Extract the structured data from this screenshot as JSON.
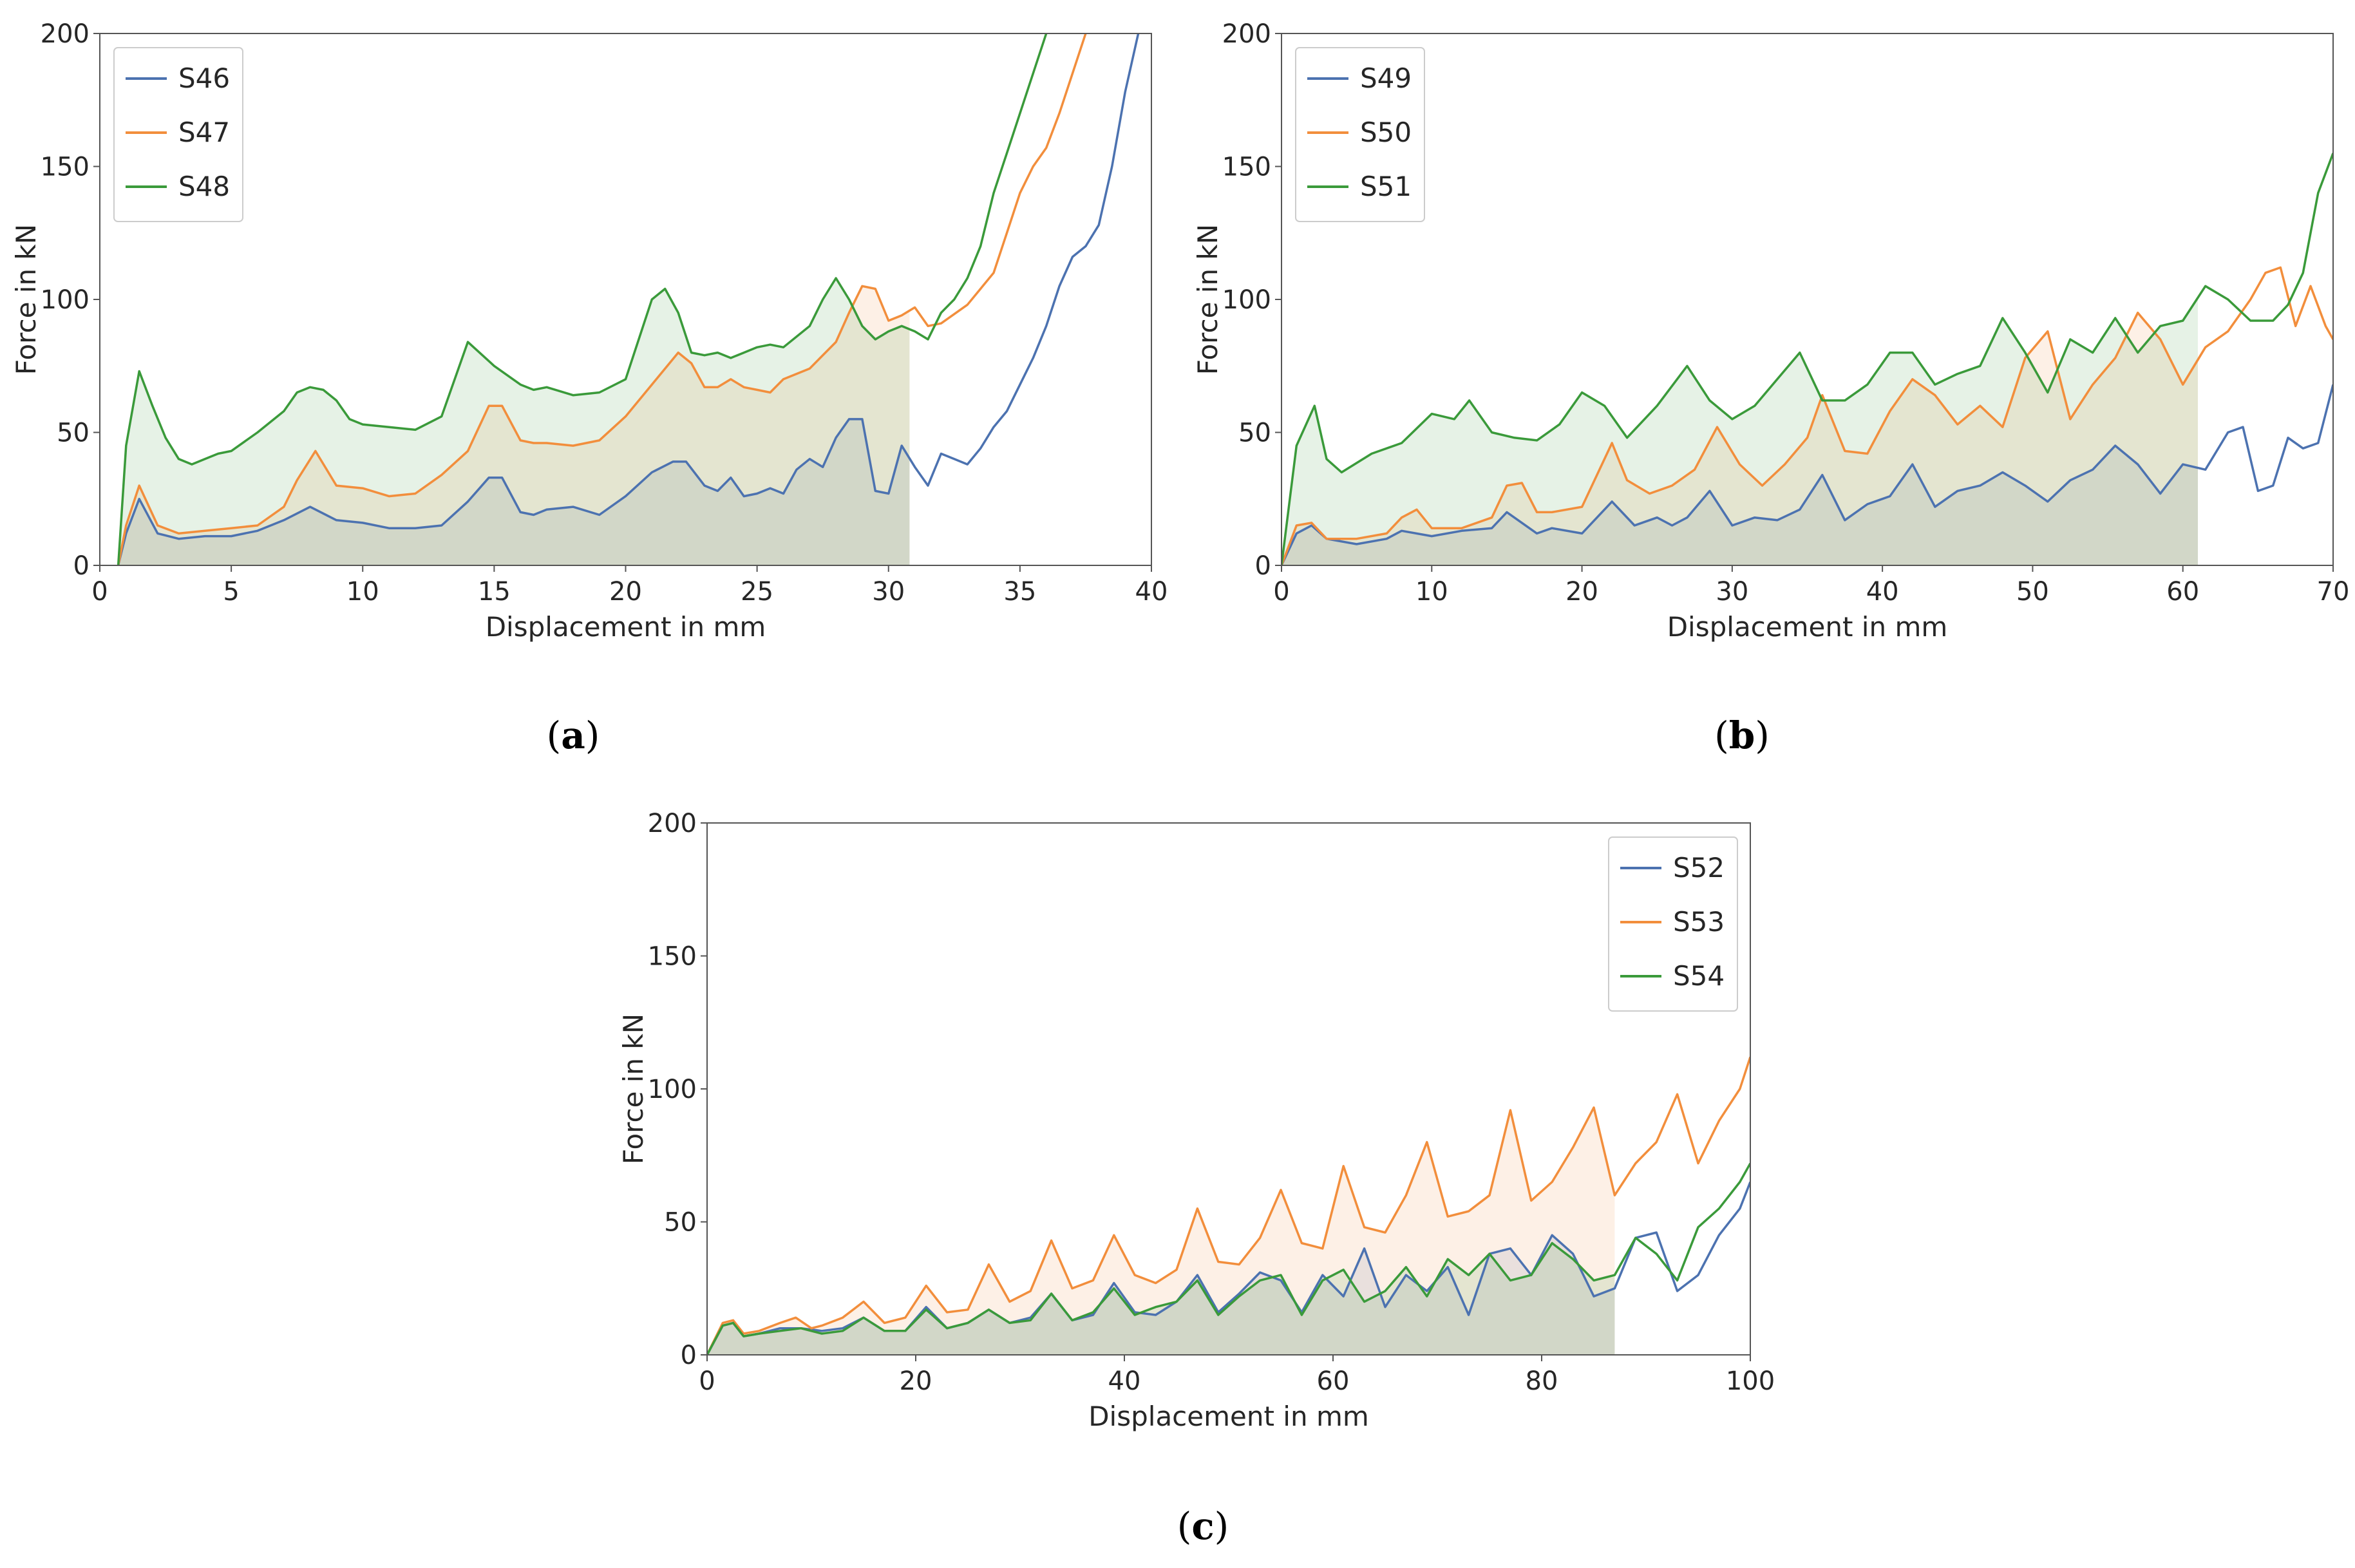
{
  "colors": {
    "blue": "#4c72b0",
    "orange": "#f28e3c",
    "green": "#3a9a3a"
  },
  "chart_data": [
    {
      "type": "line",
      "caption": "a",
      "xlabel": "Displacement in mm",
      "ylabel": "Force in kN",
      "xlim": [
        0,
        40
      ],
      "ylim": [
        0,
        200
      ],
      "xticks": [
        "0",
        "5",
        "10",
        "15",
        "20",
        "25",
        "30",
        "35",
        "40"
      ],
      "yticks": [
        "0",
        "50",
        "100",
        "150",
        "200"
      ],
      "legend_position": "upper-left",
      "shade_until": 30.8,
      "series": [
        {
          "name": "S46",
          "color": "#4c72b0",
          "x": [
            0.7,
            1.0,
            1.5,
            2.2,
            3.0,
            4.0,
            5.0,
            6.0,
            7.0,
            8.0,
            9.0,
            10.0,
            11.0,
            12.0,
            13.0,
            14.0,
            14.8,
            15.3,
            16.0,
            16.5,
            17.0,
            18.0,
            19.0,
            20.0,
            21.0,
            21.8,
            22.3,
            23.0,
            23.5,
            24.0,
            24.5,
            25.0,
            25.5,
            26.0,
            26.5,
            27.0,
            27.5,
            28.0,
            28.5,
            29.0,
            29.5,
            30.0,
            30.5,
            31.0,
            31.5,
            32.0,
            32.5,
            33.0,
            33.5,
            34.0,
            34.5,
            35.0,
            35.5,
            36.0,
            36.5,
            37.0,
            37.5,
            38.0,
            38.5,
            39.0,
            39.5
          ],
          "y": [
            0,
            12,
            25,
            12,
            10,
            11,
            11,
            13,
            17,
            22,
            17,
            16,
            14,
            14,
            15,
            24,
            33,
            33,
            20,
            19,
            21,
            22,
            19,
            26,
            35,
            39,
            39,
            30,
            28,
            33,
            26,
            27,
            29,
            27,
            36,
            40,
            37,
            48,
            55,
            55,
            28,
            27,
            45,
            37,
            30,
            42,
            40,
            38,
            44,
            52,
            58,
            68,
            78,
            90,
            105,
            116,
            120,
            128,
            150,
            178,
            200
          ]
        },
        {
          "name": "S47",
          "color": "#f28e3c",
          "x": [
            0.7,
            1.0,
            1.5,
            2.2,
            3.0,
            4.0,
            5.0,
            6.0,
            7.0,
            7.5,
            8.2,
            9.0,
            10.0,
            11.0,
            12.0,
            13.0,
            14.0,
            14.8,
            15.3,
            16.0,
            16.5,
            17.0,
            18.0,
            19.0,
            20.0,
            21.0,
            22.0,
            22.5,
            23.0,
            23.5,
            24.0,
            24.5,
            25.0,
            25.5,
            26.0,
            27.0,
            28.0,
            28.5,
            29.0,
            29.5,
            30.0,
            30.5,
            31.0,
            31.5,
            32.0,
            33.0,
            34.0,
            34.5,
            35.0,
            35.5,
            36.0,
            36.5,
            37.0,
            37.5
          ],
          "y": [
            0,
            15,
            30,
            15,
            12,
            13,
            14,
            15,
            22,
            32,
            43,
            30,
            29,
            26,
            27,
            34,
            43,
            60,
            60,
            47,
            46,
            46,
            45,
            47,
            56,
            68,
            80,
            76,
            67,
            67,
            70,
            67,
            66,
            65,
            70,
            74,
            84,
            95,
            105,
            104,
            92,
            94,
            97,
            90,
            91,
            98,
            110,
            125,
            140,
            150,
            157,
            170,
            185,
            200
          ]
        },
        {
          "name": "S48",
          "color": "#3a9a3a",
          "x": [
            0.7,
            1.0,
            1.5,
            2.0,
            2.5,
            3.0,
            3.5,
            4.0,
            4.5,
            5.0,
            6.0,
            7.0,
            7.5,
            8.0,
            8.5,
            9.0,
            9.5,
            10.0,
            11.0,
            12.0,
            13.0,
            14.0,
            15.0,
            16.0,
            16.5,
            17.0,
            18.0,
            19.0,
            20.0,
            21.0,
            21.5,
            22.0,
            22.5,
            23.0,
            23.5,
            24.0,
            24.5,
            25.0,
            25.5,
            26.0,
            27.0,
            27.5,
            28.0,
            28.5,
            29.0,
            29.5,
            30.0,
            30.5,
            31.0,
            31.5,
            32.0,
            32.5,
            33.0,
            33.5,
            34.0,
            34.5,
            35.0,
            35.5,
            36.0
          ],
          "y": [
            0,
            45,
            73,
            60,
            48,
            40,
            38,
            40,
            42,
            43,
            50,
            58,
            65,
            67,
            66,
            62,
            55,
            53,
            52,
            51,
            56,
            84,
            75,
            68,
            66,
            67,
            64,
            65,
            70,
            100,
            104,
            95,
            80,
            79,
            80,
            78,
            80,
            82,
            83,
            82,
            90,
            100,
            108,
            100,
            90,
            85,
            88,
            90,
            88,
            85,
            95,
            100,
            108,
            120,
            140,
            155,
            170,
            185,
            200
          ]
        }
      ]
    },
    {
      "type": "line",
      "caption": "b",
      "xlabel": "Displacement in mm",
      "ylabel": "Force in kN",
      "xlim": [
        0,
        70
      ],
      "ylim": [
        0,
        200
      ],
      "xticks": [
        "0",
        "10",
        "20",
        "30",
        "40",
        "50",
        "60",
        "70"
      ],
      "yticks": [
        "0",
        "50",
        "100",
        "150",
        "200"
      ],
      "legend_position": "upper-left",
      "shade_until": 61,
      "series": [
        {
          "name": "S49",
          "color": "#4c72b0",
          "x": [
            0,
            1.0,
            2.0,
            3.0,
            5.0,
            7.0,
            8.0,
            10.0,
            12.0,
            14.0,
            15.0,
            17.0,
            18.0,
            20.0,
            22.0,
            23.5,
            25.0,
            26.0,
            27.0,
            28.5,
            30.0,
            31.5,
            33.0,
            34.5,
            36.0,
            37.5,
            39.0,
            40.5,
            42.0,
            43.5,
            45.0,
            46.5,
            48.0,
            49.5,
            51.0,
            52.5,
            54.0,
            55.5,
            57.0,
            58.5,
            60.0,
            61.5,
            63.0,
            64.0,
            65.0,
            66.0,
            67.0,
            68.0,
            69.0,
            70.0
          ],
          "y": [
            0,
            12,
            15,
            10,
            8,
            10,
            13,
            11,
            13,
            14,
            20,
            12,
            14,
            12,
            24,
            15,
            18,
            15,
            18,
            28,
            15,
            18,
            17,
            21,
            34,
            17,
            23,
            26,
            38,
            22,
            28,
            30,
            35,
            30,
            24,
            32,
            36,
            45,
            38,
            27,
            38,
            36,
            50,
            52,
            28,
            30,
            48,
            44,
            46,
            68
          ]
        },
        {
          "name": "S50",
          "color": "#f28e3c",
          "x": [
            0,
            1.0,
            2.0,
            3.0,
            5.0,
            7.0,
            8.0,
            9.0,
            10.0,
            12.0,
            14.0,
            15.0,
            16.0,
            17.0,
            18.0,
            20.0,
            22.0,
            23.0,
            24.5,
            26.0,
            27.5,
            29.0,
            30.5,
            32.0,
            33.5,
            35.0,
            36.0,
            37.5,
            39.0,
            40.5,
            42.0,
            43.5,
            45.0,
            46.5,
            48.0,
            49.5,
            51.0,
            52.5,
            54.0,
            55.5,
            57.0,
            58.5,
            60.0,
            61.5,
            63.0,
            64.5,
            65.5,
            66.5,
            67.5,
            68.5,
            69.5,
            70.0
          ],
          "y": [
            0,
            15,
            16,
            10,
            10,
            12,
            18,
            21,
            14,
            14,
            18,
            30,
            31,
            20,
            20,
            22,
            46,
            32,
            27,
            30,
            36,
            52,
            38,
            30,
            38,
            48,
            64,
            43,
            42,
            58,
            70,
            64,
            53,
            60,
            52,
            78,
            88,
            55,
            68,
            78,
            95,
            85,
            68,
            82,
            88,
            100,
            110,
            112,
            90,
            105,
            90,
            85
          ]
        },
        {
          "name": "S51",
          "color": "#3a9a3a",
          "x": [
            0,
            1.0,
            2.2,
            3.0,
            4.0,
            6.0,
            8.0,
            10.0,
            11.5,
            12.5,
            14.0,
            15.5,
            17.0,
            18.5,
            20.0,
            21.5,
            23.0,
            25.0,
            27.0,
            28.5,
            30.0,
            31.5,
            33.0,
            34.5,
            36.0,
            37.5,
            39.0,
            40.5,
            42.0,
            43.5,
            45.0,
            46.5,
            48.0,
            49.5,
            51.0,
            52.5,
            54.0,
            55.5,
            57.0,
            58.5,
            60.0,
            61.5,
            63.0,
            64.5,
            66.0,
            67.0,
            68.0,
            69.0,
            70.0
          ],
          "y": [
            0,
            45,
            60,
            40,
            35,
            42,
            46,
            57,
            55,
            62,
            50,
            48,
            47,
            53,
            65,
            60,
            48,
            60,
            75,
            62,
            55,
            60,
            70,
            80,
            62,
            62,
            68,
            80,
            80,
            68,
            72,
            75,
            93,
            80,
            65,
            85,
            80,
            93,
            80,
            90,
            92,
            105,
            100,
            92,
            92,
            98,
            110,
            140,
            155
          ]
        }
      ]
    },
    {
      "type": "line",
      "caption": "c",
      "xlabel": "Displacement in mm",
      "ylabel": "Force in kN",
      "xlim": [
        0,
        100
      ],
      "ylim": [
        0,
        200
      ],
      "xticks": [
        "0",
        "20",
        "40",
        "60",
        "80",
        "100"
      ],
      "yticks": [
        "0",
        "50",
        "100",
        "150",
        "200"
      ],
      "legend_position": "upper-right",
      "shade_until": 87,
      "series": [
        {
          "name": "S52",
          "color": "#4c72b0",
          "x": [
            0,
            1.5,
            2.5,
            3.5,
            5,
            7,
            9,
            11,
            13,
            15,
            17,
            19,
            21,
            23,
            25,
            27,
            29,
            31,
            33,
            35,
            37,
            39,
            41,
            43,
            45,
            47,
            49,
            51,
            53,
            55,
            57,
            59,
            61,
            63,
            65,
            67,
            69,
            71,
            73,
            75,
            77,
            79,
            81,
            83,
            85,
            87,
            89,
            91,
            93,
            95,
            97,
            99,
            100
          ],
          "y": [
            0,
            11,
            12,
            7,
            8,
            10,
            10,
            9,
            10,
            14,
            9,
            9,
            18,
            10,
            12,
            17,
            12,
            14,
            23,
            13,
            15,
            27,
            16,
            15,
            20,
            30,
            16,
            23,
            31,
            28,
            16,
            30,
            22,
            40,
            18,
            30,
            24,
            33,
            15,
            38,
            40,
            30,
            45,
            38,
            22,
            25,
            44,
            46,
            24,
            30,
            45,
            55,
            65
          ]
        },
        {
          "name": "S53",
          "color": "#f28e3c",
          "x": [
            0,
            1.5,
            2.5,
            3.5,
            5,
            7,
            8.5,
            10,
            11,
            13,
            15,
            17,
            19,
            21,
            23,
            25,
            27,
            29,
            31,
            33,
            35,
            37,
            39,
            41,
            43,
            45,
            47,
            49,
            51,
            53,
            55,
            57,
            59,
            61,
            63,
            65,
            67,
            69,
            71,
            73,
            75,
            77,
            79,
            81,
            83,
            85,
            87,
            89,
            91,
            93,
            95,
            97,
            99,
            100
          ],
          "y": [
            0,
            12,
            13,
            8,
            9,
            12,
            14,
            10,
            11,
            14,
            20,
            12,
            14,
            26,
            16,
            17,
            34,
            20,
            24,
            43,
            25,
            28,
            45,
            30,
            27,
            32,
            55,
            35,
            34,
            44,
            62,
            42,
            40,
            71,
            48,
            46,
            60,
            80,
            52,
            54,
            60,
            92,
            58,
            65,
            78,
            93,
            60,
            72,
            80,
            98,
            72,
            88,
            100,
            112
          ]
        },
        {
          "name": "S54",
          "color": "#3a9a3a",
          "x": [
            0,
            1.5,
            2.5,
            3.5,
            5,
            7,
            9,
            11,
            13,
            15,
            17,
            19,
            21,
            23,
            25,
            27,
            29,
            31,
            33,
            35,
            37,
            39,
            41,
            43,
            45,
            47,
            49,
            51,
            53,
            55,
            57,
            59,
            61,
            63,
            65,
            67,
            69,
            71,
            73,
            75,
            77,
            79,
            81,
            83,
            85,
            87,
            89,
            91,
            93,
            95,
            97,
            99,
            100
          ],
          "y": [
            0,
            11,
            12,
            7,
            8,
            9,
            10,
            8,
            9,
            14,
            9,
            9,
            17,
            10,
            12,
            17,
            12,
            13,
            23,
            13,
            16,
            25,
            15,
            18,
            20,
            28,
            15,
            22,
            28,
            30,
            15,
            28,
            32,
            20,
            24,
            33,
            22,
            36,
            30,
            38,
            28,
            30,
            42,
            36,
            28,
            30,
            44,
            38,
            28,
            48,
            55,
            65,
            72
          ]
        }
      ]
    }
  ]
}
